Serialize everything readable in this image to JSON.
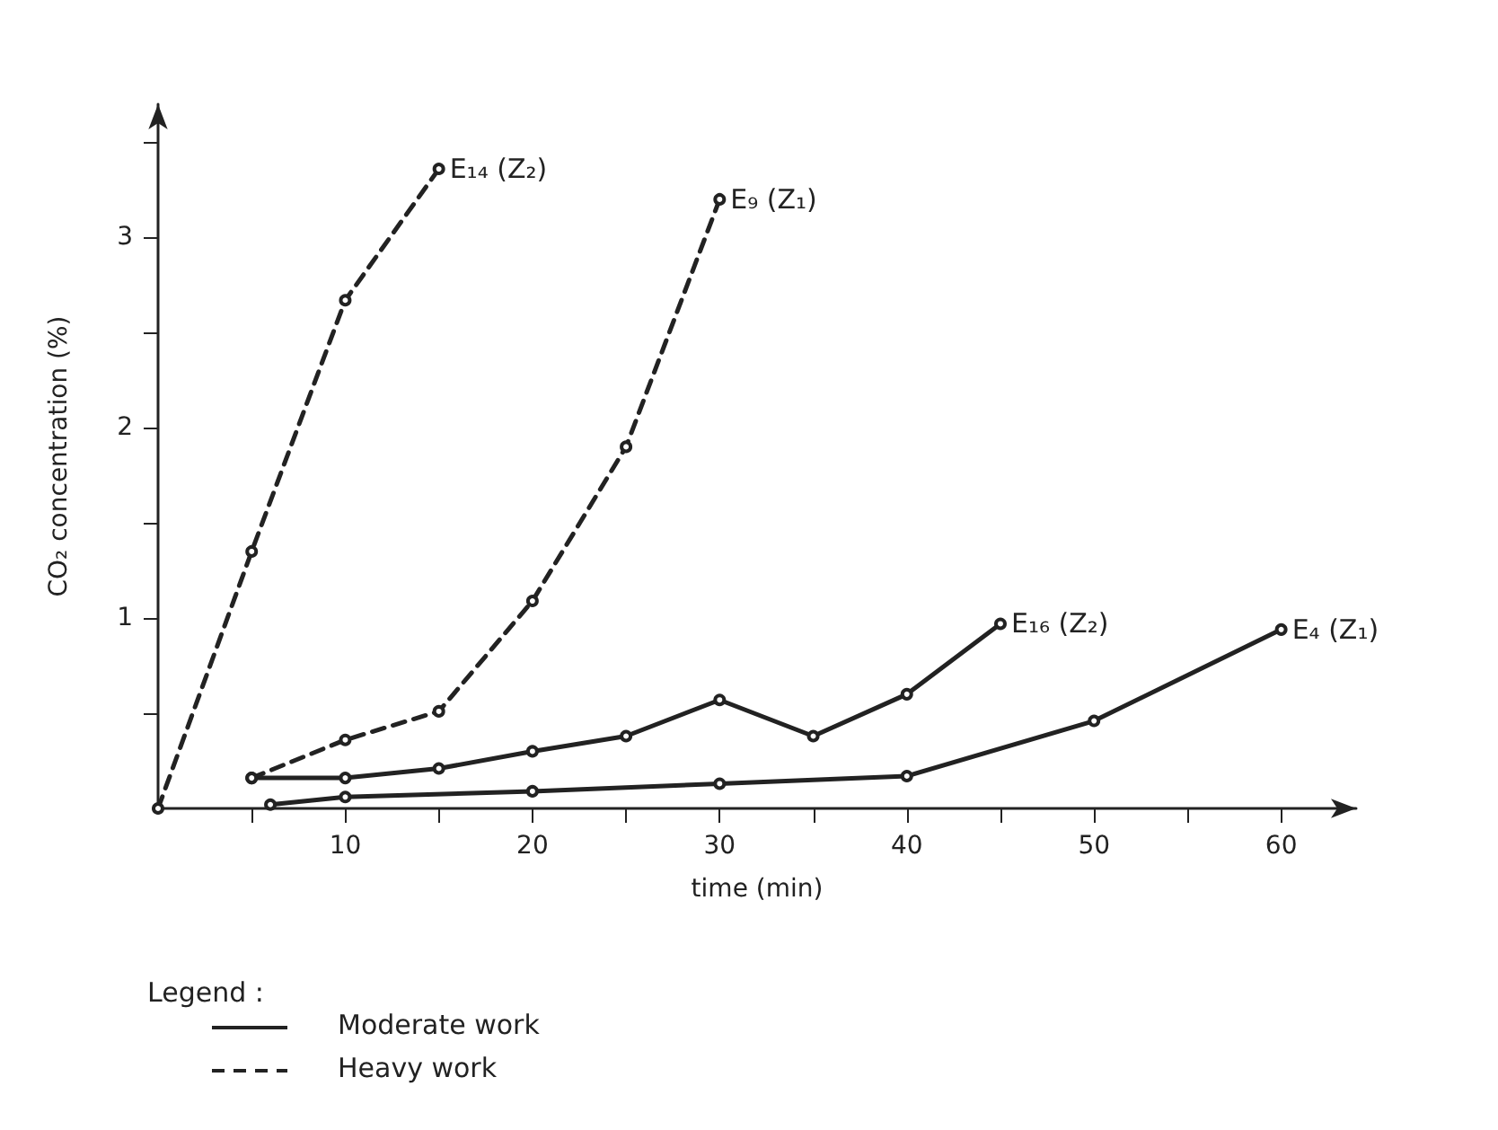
{
  "chart_data": {
    "type": "line",
    "xlabel": "time (min)",
    "ylabel": "CO₂ concentration (%)",
    "legend_title": "Legend :",
    "annotations": [
      "Moderate work",
      "Heavy work"
    ],
    "xlim": [
      0,
      64
    ],
    "ylim": [
      0,
      3.7
    ],
    "xticks": [
      {
        "value": 5,
        "label": null
      },
      10,
      {
        "value": 15,
        "label": null
      },
      20,
      {
        "value": 25,
        "label": null
      },
      30,
      {
        "value": 35,
        "label": null
      },
      40,
      {
        "value": 45,
        "label": null
      },
      50,
      {
        "value": 55,
        "label": null
      },
      60
    ],
    "yticks": [
      {
        "value": 0.5,
        "label": null
      },
      1,
      {
        "value": 1.5,
        "label": null
      },
      2,
      {
        "value": 2.5,
        "label": null
      },
      3,
      {
        "value": 3.5,
        "label": null
      }
    ],
    "marker": "circle",
    "grid": false,
    "legend": false,
    "series": [
      {
        "name": "E₁₄ (Z₂)",
        "color": "#222222",
        "line_style": "dashed",
        "x": [
          0,
          5,
          10,
          15
        ],
        "values": [
          0,
          1.35,
          2.67,
          3.36
        ]
      },
      {
        "name": "E₉ (Z₁)",
        "color": "#222222",
        "line_style": "dashed",
        "x": [
          5,
          10,
          15,
          20,
          25,
          30
        ],
        "values": [
          0.16,
          0.36,
          0.51,
          1.09,
          1.9,
          3.2
        ]
      },
      {
        "name": "E₁₆ (Z₂)",
        "color": "#222222",
        "line_style": "solid",
        "x": [
          5,
          10,
          15,
          20,
          25,
          30,
          35,
          40,
          45
        ],
        "values": [
          0.16,
          0.16,
          0.21,
          0.3,
          0.38,
          0.57,
          0.38,
          0.6,
          0.97
        ]
      },
      {
        "name": "E₄ (Z₁)",
        "color": "#222222",
        "line_style": "solid",
        "x": [
          6,
          10,
          20,
          30,
          40,
          50,
          60
        ],
        "values": [
          0.02,
          0.06,
          0.09,
          0.13,
          0.17,
          0.46,
          0.94
        ]
      }
    ]
  }
}
